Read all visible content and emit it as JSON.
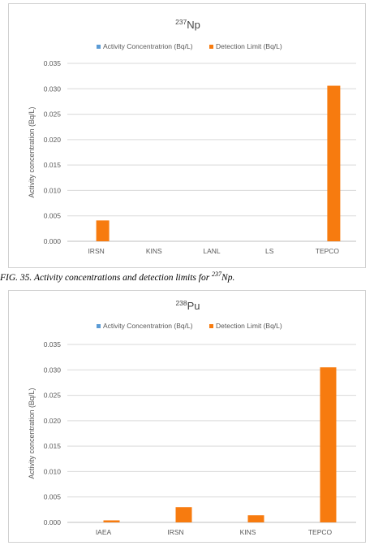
{
  "caption": {
    "prefix": "FIG. 35. Activity concentrations and detection limits for ",
    "isotope_mass": "237",
    "isotope_symbol": "Np."
  },
  "colors": {
    "activity": "#5B9BD5",
    "detection": "#F77B0F",
    "grid": "#d9d9d9",
    "axis_text": "#595959"
  },
  "chart_data": [
    {
      "type": "bar",
      "title_mass": "237",
      "title_symbol": "Np",
      "categories": [
        "IRSN",
        "KINS",
        "LANL",
        "LS",
        "TEPCO"
      ],
      "series": [
        {
          "name": "Activity Concentratrion (Bq/L)",
          "values": [
            null,
            null,
            null,
            null,
            null
          ]
        },
        {
          "name": "Detection Limit (Bq/L)",
          "values": [
            0.0041,
            null,
            null,
            null,
            0.0306
          ]
        }
      ],
      "ylabel": "Activity concentration (Bq/L)",
      "ylim": [
        0,
        0.035
      ],
      "yticks": [
        "0.000",
        "0.005",
        "0.010",
        "0.015",
        "0.020",
        "0.025",
        "0.030",
        "0.035"
      ],
      "grid": true,
      "legend": "top"
    },
    {
      "type": "bar",
      "title_mass": "238",
      "title_symbol": "Pu",
      "categories": [
        "IAEA",
        "IRSN",
        "KINS",
        "TEPCO"
      ],
      "series": [
        {
          "name": "Activity Concentratrion (Bq/L)",
          "values": [
            null,
            null,
            null,
            null
          ]
        },
        {
          "name": "Detection Limit (Bq/L)",
          "values": [
            0.0004,
            0.003,
            0.0014,
            0.0305
          ]
        }
      ],
      "ylabel": "Activity concentration (Bq/L)",
      "ylim": [
        0,
        0.035
      ],
      "yticks": [
        "0.000",
        "0.005",
        "0.010",
        "0.015",
        "0.020",
        "0.025",
        "0.030",
        "0.035"
      ],
      "grid": true,
      "legend": "top"
    }
  ]
}
